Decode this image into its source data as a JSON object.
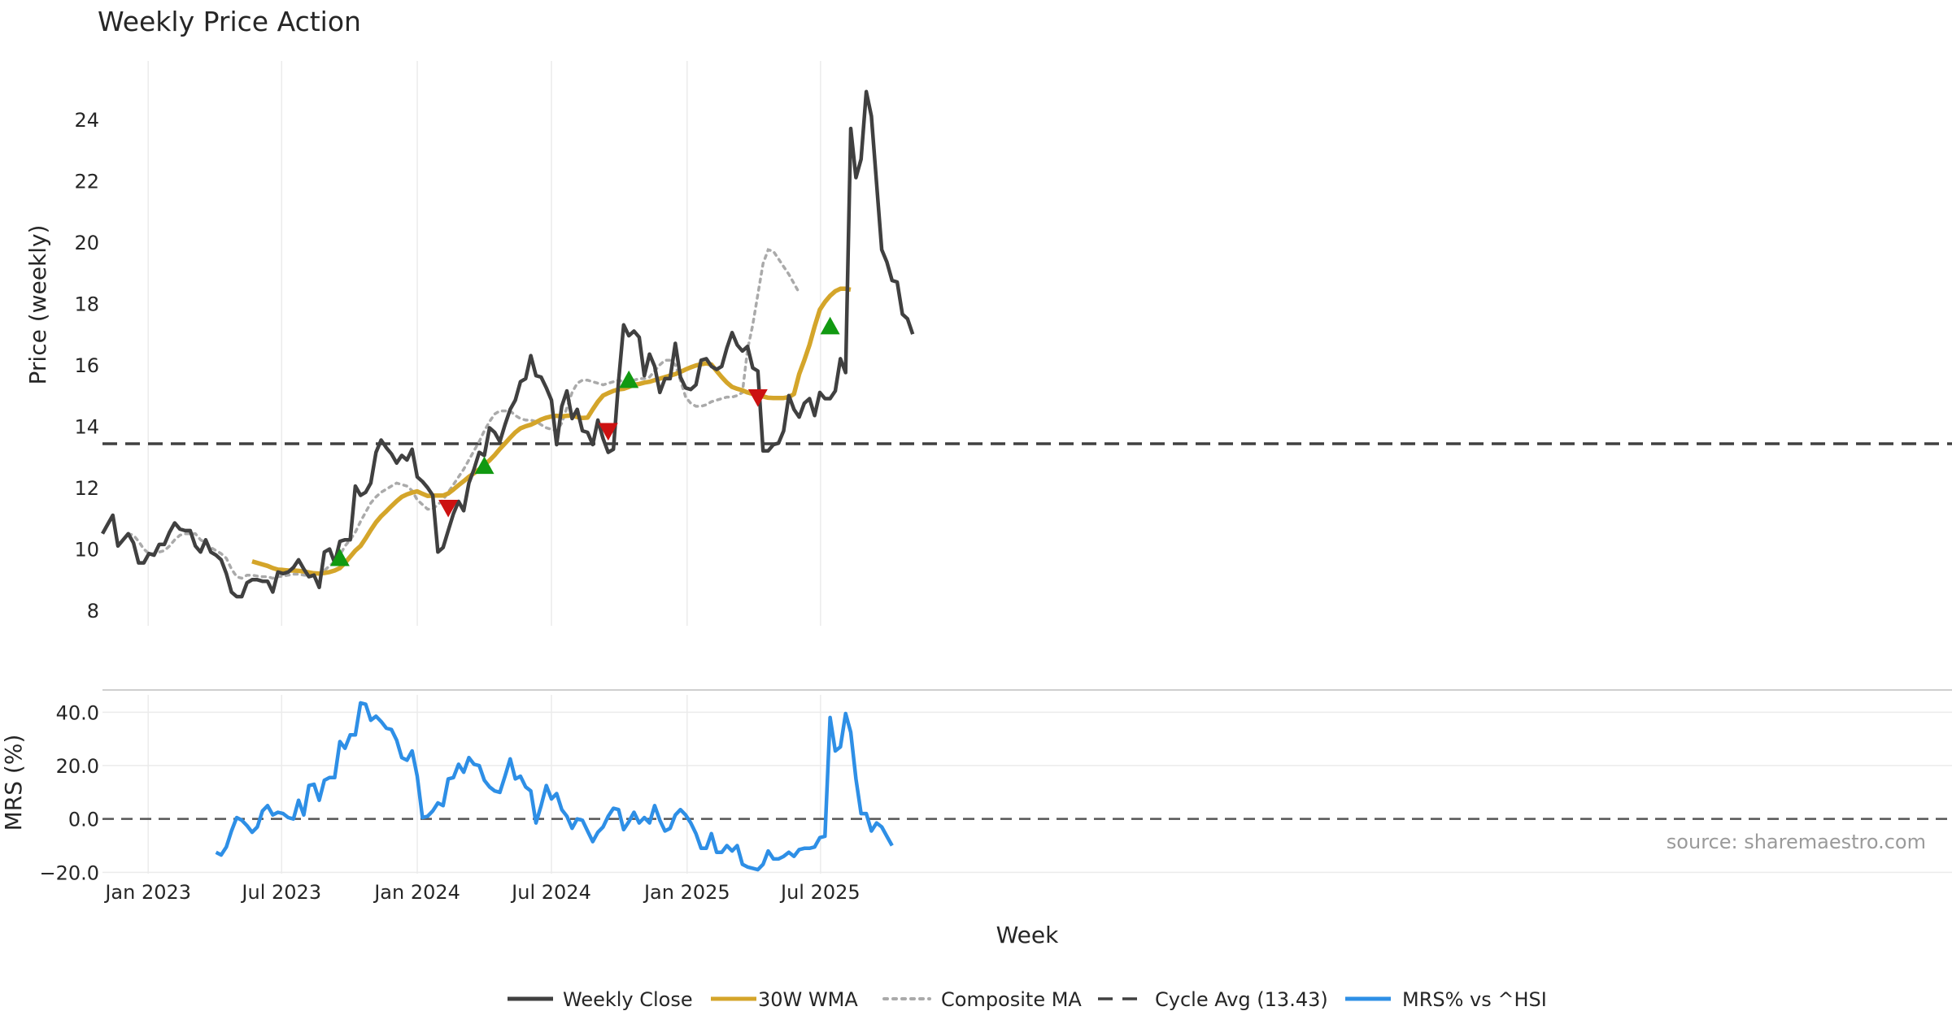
{
  "chart_data": [
    {
      "type": "line",
      "title": "Weekly Price Action",
      "ylabel": "Price (weekly)",
      "xlabel": "Week",
      "x_ticks": [
        "Jan 2023",
        "Jul 2023",
        "Jan 2024",
        "Jul 2024",
        "Jan 2025",
        "Jul 2025"
      ],
      "y_ticks": [
        8,
        10,
        12,
        14,
        16,
        18,
        20,
        22,
        24
      ],
      "ylim": [
        7.5,
        25.9
      ],
      "grid": true,
      "legend_position": "bottom",
      "cycle_avg": 13.43,
      "x_start": "2022-10-31",
      "series": [
        {
          "name": "Weekly Close",
          "color": "#404040",
          "values": [
            10.5,
            10.8,
            11.1,
            10.1,
            10.3,
            10.5,
            10.2,
            9.55,
            9.55,
            9.85,
            9.8,
            10.15,
            10.15,
            10.55,
            10.85,
            10.65,
            10.6,
            10.6,
            10.1,
            9.9,
            10.3,
            9.9,
            9.8,
            9.65,
            9.2,
            8.6,
            8.45,
            8.45,
            8.9,
            9.0,
            9.0,
            8.95,
            8.95,
            8.6,
            9.25,
            9.2,
            9.25,
            9.4,
            9.65,
            9.35,
            9.1,
            9.15,
            8.75,
            9.9,
            10.0,
            9.55,
            10.25,
            10.3,
            10.3,
            12.05,
            11.75,
            11.85,
            12.15,
            13.15,
            13.55,
            13.3,
            13.1,
            12.8,
            13.05,
            12.9,
            13.25,
            12.35,
            12.2,
            12.0,
            11.75,
            9.9,
            10.05,
            10.6,
            11.15,
            11.55,
            11.25,
            12.15,
            12.6,
            13.15,
            13.05,
            13.95,
            13.8,
            13.5,
            14.05,
            14.55,
            14.85,
            15.45,
            15.55,
            16.3,
            15.65,
            15.6,
            15.25,
            14.85,
            13.4,
            14.65,
            15.15,
            14.25,
            14.55,
            13.85,
            13.8,
            13.4,
            14.2,
            13.6,
            13.15,
            13.25,
            15.45,
            17.3,
            16.95,
            17.1,
            16.9,
            15.65,
            16.35,
            15.95,
            15.1,
            15.55,
            15.55,
            16.7,
            15.6,
            15.25,
            15.2,
            15.35,
            16.15,
            16.2,
            15.95,
            15.85,
            15.95,
            16.55,
            17.05,
            16.65,
            16.45,
            16.6,
            15.9,
            15.8,
            13.2,
            13.2,
            13.4,
            13.45,
            13.85,
            15.0,
            14.55,
            14.3,
            14.75,
            14.9,
            14.35,
            15.1,
            14.9,
            14.9,
            15.15,
            16.2,
            15.75,
            23.7,
            22.1,
            22.7,
            24.9,
            24.1,
            21.9,
            19.75,
            19.35,
            18.75,
            18.7,
            17.65,
            17.5,
            17.0
          ]
        },
        {
          "name": "30W WMA",
          "color": "#D4A52A",
          "start_index": 29,
          "values": [
            9.6,
            9.55,
            9.5,
            9.45,
            9.38,
            9.33,
            9.32,
            9.3,
            9.3,
            9.29,
            9.27,
            9.24,
            9.21,
            9.2,
            9.22,
            9.25,
            9.3,
            9.38,
            9.55,
            9.75,
            9.95,
            10.1,
            10.35,
            10.62,
            10.87,
            11.07,
            11.23,
            11.4,
            11.56,
            11.7,
            11.78,
            11.84,
            11.88,
            11.8,
            11.73,
            11.74,
            11.74,
            11.74,
            11.81,
            11.94,
            12.08,
            12.21,
            12.35,
            12.47,
            12.6,
            12.74,
            12.89,
            13.06,
            13.26,
            13.44,
            13.63,
            13.8,
            13.93,
            14.0,
            14.05,
            14.13,
            14.22,
            14.28,
            14.32,
            14.34,
            14.32,
            14.34,
            14.35,
            14.3,
            14.27,
            14.28,
            14.55,
            14.8,
            15.0,
            15.08,
            15.15,
            15.2,
            15.22,
            15.28,
            15.35,
            15.38,
            15.42,
            15.45,
            15.5,
            15.55,
            15.6,
            15.65,
            15.7,
            15.77,
            15.85,
            15.92,
            15.98,
            16.02,
            16.05,
            16.01,
            15.8,
            15.6,
            15.42,
            15.28,
            15.22,
            15.17,
            15.1,
            15.05,
            15.0,
            14.97,
            14.93,
            14.92,
            14.92,
            14.92,
            14.95,
            15.05,
            15.7,
            16.15,
            16.65,
            17.25,
            17.8,
            18.05,
            18.25,
            18.4,
            18.48,
            18.48,
            18.45
          ]
        },
        {
          "name": "Composite MA",
          "color": "#AAAAAA",
          "start_index": 5,
          "values": [
            10.5,
            10.45,
            10.25,
            10.0,
            9.85,
            9.85,
            9.9,
            9.95,
            10.1,
            10.3,
            10.45,
            10.5,
            10.5,
            10.5,
            10.3,
            10.2,
            10.05,
            9.95,
            9.85,
            9.7,
            9.35,
            9.1,
            9.05,
            9.15,
            9.15,
            9.12,
            9.1,
            9.1,
            9.05,
            9.1,
            9.12,
            9.15,
            9.18,
            9.18,
            9.15,
            9.13,
            9.15,
            9.22,
            9.3,
            9.45,
            9.6,
            9.8,
            10.1,
            10.3,
            10.55,
            10.9,
            11.2,
            11.5,
            11.7,
            11.85,
            11.95,
            12.05,
            12.15,
            12.1,
            12.05,
            11.9,
            11.6,
            11.45,
            11.3,
            11.3,
            11.45,
            11.6,
            11.85,
            12.1,
            12.35,
            12.6,
            12.9,
            13.2,
            13.5,
            13.85,
            14.15,
            14.4,
            14.5,
            14.5,
            14.5,
            14.35,
            14.25,
            14.2,
            14.2,
            14.15,
            14.05,
            13.95,
            13.9,
            13.85,
            14.1,
            14.6,
            15.1,
            15.4,
            15.5,
            15.5,
            15.45,
            15.4,
            15.35,
            15.4,
            15.45,
            15.5,
            15.45,
            15.45,
            15.5,
            15.55,
            15.55,
            15.6,
            15.8,
            16.0,
            16.15,
            16.15,
            16.0,
            15.5,
            14.95,
            14.75,
            14.65,
            14.65,
            14.7,
            14.8,
            14.85,
            14.9,
            14.95,
            14.95,
            15.0,
            15.1,
            16.5,
            17.3,
            18.3,
            19.3,
            19.75,
            19.7,
            19.45,
            19.2,
            18.95,
            18.65,
            18.35
          ]
        }
      ],
      "markers": [
        {
          "type": "buy",
          "index": 46,
          "value": 9.7,
          "color": "#119911"
        },
        {
          "type": "sell",
          "index": 67,
          "value": 11.35,
          "color": "#CC1111"
        },
        {
          "type": "buy",
          "index": 74,
          "value": 12.7,
          "color": "#119911"
        },
        {
          "type": "sell",
          "index": 98,
          "value": 13.85,
          "color": "#CC1111"
        },
        {
          "type": "buy",
          "index": 102,
          "value": 15.5,
          "color": "#119911"
        },
        {
          "type": "sell",
          "index": 127,
          "value": 14.95,
          "color": "#CC1111"
        },
        {
          "type": "buy",
          "index": 141,
          "value": 17.25,
          "color": "#119911"
        }
      ]
    },
    {
      "type": "line",
      "ylabel": "MRS (%)",
      "y_ticks": [
        "40.0",
        "20.0",
        "0.0",
        "−20.0"
      ],
      "y_tick_values": [
        40,
        20,
        0,
        -20
      ],
      "ylim": [
        -20.5,
        46.5
      ],
      "zero_line": 0,
      "series": [
        {
          "name": "MRS% vs ^HSI",
          "color": "#2E8FE6",
          "start_index": 22,
          "values": [
            -12.5,
            -13.5,
            -10.5,
            -4.5,
            0.5,
            -0.5,
            -2.5,
            -5.0,
            -3.0,
            3.0,
            5.0,
            1.5,
            2.5,
            2.0,
            0.5,
            0.0,
            7.0,
            1.5,
            12.5,
            13.0,
            7.0,
            14.5,
            15.5,
            15.5,
            29.0,
            26.5,
            31.5,
            31.5,
            43.5,
            43.0,
            37.0,
            38.5,
            36.5,
            34.0,
            33.5,
            29.5,
            23.0,
            22.0,
            25.5,
            16.0,
            0.5,
            1.0,
            3.0,
            6.0,
            5.0,
            15.0,
            15.5,
            20.5,
            17.5,
            23.0,
            20.5,
            20.0,
            14.5,
            12.0,
            10.5,
            10.0,
            16.0,
            22.5,
            15.0,
            16.0,
            12.0,
            10.5,
            -1.5,
            5.0,
            12.5,
            7.5,
            9.5,
            3.5,
            1.0,
            -3.5,
            0.0,
            -0.5,
            -4.5,
            -8.5,
            -5.0,
            -3.0,
            1.0,
            4.0,
            3.5,
            -4.0,
            -1.0,
            2.5,
            -1.5,
            0.5,
            -1.5,
            5.0,
            -0.5,
            -4.5,
            -3.5,
            1.5,
            3.5,
            1.5,
            -1.5,
            -5.5,
            -11.0,
            -11.0,
            -5.5,
            -12.5,
            -12.5,
            -10.0,
            -12.0,
            -10.0,
            -17.0,
            -18.0,
            -18.5,
            -19.0,
            -17.0,
            -12.0,
            -15.0,
            -15.0,
            -14.0,
            -12.5,
            -14.0,
            -11.5,
            -11.0,
            -11.0,
            -10.5,
            -7.0,
            -6.5,
            38.0,
            25.5,
            27.0,
            39.5,
            32.5,
            15.0,
            2.0,
            2.0,
            -4.5,
            -1.5,
            -3.0,
            -6.5,
            -10.0
          ]
        }
      ]
    }
  ],
  "legend": [
    {
      "label": "Weekly Close",
      "style": "solid",
      "color": "#404040"
    },
    {
      "label": "30W WMA",
      "style": "solid",
      "color": "#D4A52A"
    },
    {
      "label": "Composite MA",
      "style": "dotted",
      "color": "#AAAAAA"
    },
    {
      "label": "Cycle Avg (13.43)",
      "style": "dashed",
      "color": "#404040"
    },
    {
      "label": "MRS% vs ^HSI",
      "style": "solid",
      "color": "#2E8FE6"
    }
  ],
  "source_label": "source: sharemaestro.com"
}
